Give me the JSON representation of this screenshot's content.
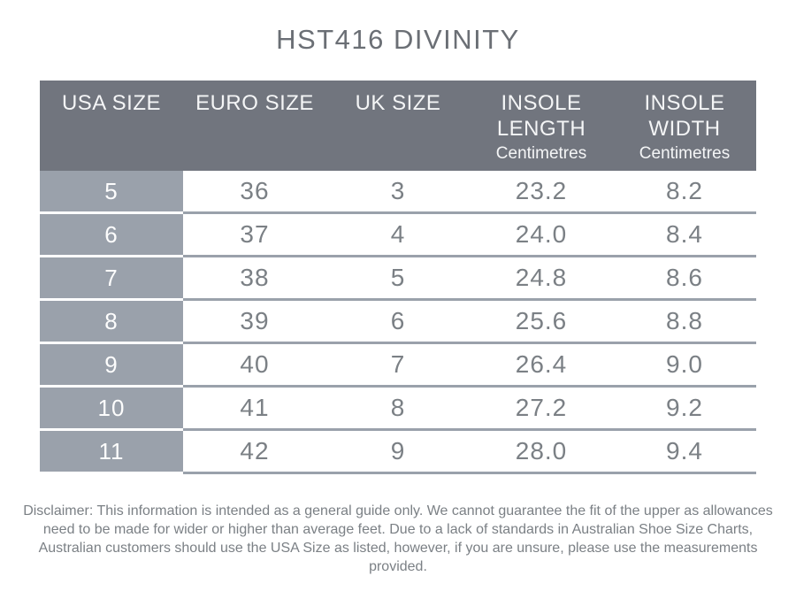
{
  "title": "HST416 DIVINITY",
  "table": {
    "columns": [
      {
        "label": "USA SIZE",
        "sub": ""
      },
      {
        "label": "EURO SIZE",
        "sub": ""
      },
      {
        "label": "UK SIZE",
        "sub": ""
      },
      {
        "label": "INSOLE LENGTH",
        "sub": "Centimetres"
      },
      {
        "label": "INSOLE WIDTH",
        "sub": "Centimetres"
      }
    ],
    "rows": [
      [
        "5",
        "36",
        "3",
        "23.2",
        "8.2"
      ],
      [
        "6",
        "37",
        "4",
        "24.0",
        "8.4"
      ],
      [
        "7",
        "38",
        "5",
        "24.8",
        "8.6"
      ],
      [
        "8",
        "39",
        "6",
        "25.6",
        "8.8"
      ],
      [
        "9",
        "40",
        "7",
        "26.4",
        "9.0"
      ],
      [
        "10",
        "41",
        "8",
        "27.2",
        "9.2"
      ],
      [
        "11",
        "42",
        "9",
        "28.0",
        "9.4"
      ]
    ]
  },
  "disclaimer": "Disclaimer: This information is intended as a general guide only. We cannot guarantee the fit of the upper as allowances need to be made for wider or higher than average feet. Due to a lack of standards in Australian Shoe Size Charts, Australian customers should use the USA Size as listed, however, if you are unsure, please use the measurements provided.",
  "colors": {
    "header_bg": "#71757e",
    "row_label_bg": "#9aa1ab",
    "grid_line": "#9aa1ab",
    "header_text": "#f4f5f6",
    "cell_text": "#7b8085",
    "title_text": "#6b6f75",
    "disclaimer_text": "#7b8085"
  }
}
